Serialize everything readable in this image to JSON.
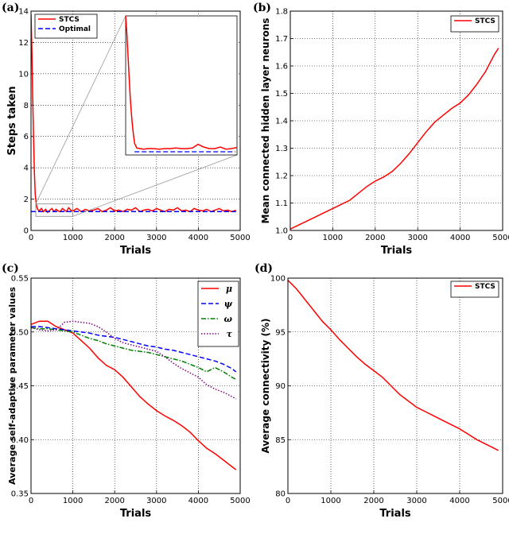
{
  "chart_data": [
    {
      "panel": "(a)",
      "type": "line",
      "xlabel": "Trials",
      "ylabel": "Steps taken",
      "xlim": [
        0,
        5000
      ],
      "ylim": [
        0,
        14
      ],
      "xticks": [
        "0",
        "1000",
        "2000",
        "3000",
        "4000",
        "5000"
      ],
      "yticks": [
        "0",
        "2",
        "4",
        "6",
        "8",
        "10",
        "12",
        "14"
      ],
      "grid": true,
      "legend": "top-left",
      "series": [
        {
          "name": "STCS",
          "color": "#ff0000",
          "style": "solid",
          "x": [
            0,
            20,
            40,
            60,
            80,
            100,
            130,
            160,
            200,
            250,
            300,
            350,
            400,
            450,
            500,
            550,
            600,
            650,
            700,
            750,
            800,
            850,
            900,
            950,
            1000,
            1100,
            1200,
            1300,
            1400,
            1500,
            1600,
            1700,
            1800,
            1900,
            2000,
            2100,
            2200,
            2300,
            2400,
            2500,
            2600,
            2700,
            2800,
            2900,
            3000,
            3100,
            3200,
            3300,
            3400,
            3500,
            3600,
            3700,
            3800,
            3900,
            4000,
            4100,
            4200,
            4300,
            4400,
            4500,
            4600,
            4700,
            4800,
            4900
          ],
          "y": [
            13.8,
            11.5,
            8.5,
            6.0,
            3.8,
            2.3,
            1.6,
            1.35,
            1.25,
            1.4,
            1.2,
            1.35,
            1.15,
            1.3,
            1.4,
            1.2,
            1.35,
            1.25,
            1.2,
            1.4,
            1.3,
            1.2,
            1.45,
            1.3,
            1.25,
            1.4,
            1.2,
            1.35,
            1.25,
            1.3,
            1.4,
            1.2,
            1.3,
            1.45,
            1.25,
            1.3,
            1.2,
            1.35,
            1.3,
            1.45,
            1.2,
            1.3,
            1.35,
            1.25,
            1.4,
            1.3,
            1.2,
            1.35,
            1.3,
            1.45,
            1.25,
            1.3,
            1.2,
            1.4,
            1.3,
            1.25,
            1.35,
            1.2,
            1.3,
            1.4,
            1.25,
            1.3,
            1.2,
            1.3
          ]
        },
        {
          "name": "Optimal",
          "color": "#0000ff",
          "style": "dashed",
          "x": [
            0,
            4900
          ],
          "y": [
            1.2,
            1.2
          ]
        }
      ],
      "inset": {
        "xlim": [
          0,
          1000
        ],
        "ylim": [
          0.9,
          14
        ],
        "x": [
          0,
          10,
          20,
          30,
          40,
          50,
          60,
          70,
          80,
          100,
          130,
          160,
          200,
          250,
          300,
          350,
          400,
          450,
          500,
          550,
          600,
          650,
          700,
          750,
          800,
          850,
          900,
          950,
          1000
        ],
        "y": [
          14,
          12.5,
          10.5,
          8.5,
          6.5,
          5.0,
          3.8,
          2.8,
          2.0,
          1.55,
          1.5,
          1.45,
          1.5,
          1.5,
          1.45,
          1.5,
          1.5,
          1.55,
          1.5,
          1.5,
          1.55,
          1.9,
          1.65,
          1.5,
          1.5,
          1.65,
          1.45,
          1.5,
          1.6
        ],
        "optimal": 1.2
      }
    },
    {
      "panel": "(b)",
      "type": "line",
      "xlabel": "Trials",
      "ylabel": "Mean connected hidden layer neurons",
      "xlim": [
        0,
        5000
      ],
      "ylim": [
        1.0,
        1.8
      ],
      "xticks": [
        "0",
        "1000",
        "2000",
        "3000",
        "4000",
        "5000"
      ],
      "yticks": [
        "1.0",
        "1.1",
        "1.2",
        "1.3",
        "1.4",
        "1.5",
        "1.6",
        "1.7",
        "1.8"
      ],
      "grid": true,
      "legend": "top-right",
      "series": [
        {
          "name": "STCS",
          "color": "#ff0000",
          "style": "solid",
          "x": [
            0,
            200,
            400,
            600,
            800,
            1000,
            1200,
            1400,
            1600,
            1800,
            2000,
            2200,
            2400,
            2600,
            2800,
            3000,
            3200,
            3400,
            3600,
            3800,
            4000,
            4200,
            4400,
            4600,
            4800,
            4900
          ],
          "y": [
            1.005,
            1.02,
            1.035,
            1.05,
            1.065,
            1.08,
            1.095,
            1.11,
            1.135,
            1.16,
            1.18,
            1.195,
            1.215,
            1.245,
            1.28,
            1.32,
            1.36,
            1.395,
            1.42,
            1.445,
            1.465,
            1.495,
            1.535,
            1.58,
            1.64,
            1.665
          ]
        }
      ]
    },
    {
      "panel": "(c)",
      "type": "line",
      "xlabel": "Trials",
      "ylabel": "Average self-adaptive parameter values",
      "xlim": [
        0,
        5000
      ],
      "ylim": [
        0.35,
        0.55
      ],
      "xticks": [
        "0",
        "1000",
        "2000",
        "3000",
        "4000",
        "5000"
      ],
      "yticks": [
        "0.35",
        "0.40",
        "0.45",
        "0.50",
        "0.55"
      ],
      "grid": true,
      "legend": "top-right",
      "series": [
        {
          "name": "μ",
          "color": "#ff0000",
          "style": "solid",
          "x": [
            0,
            200,
            400,
            600,
            800,
            1000,
            1200,
            1400,
            1600,
            1800,
            2000,
            2200,
            2400,
            2600,
            2800,
            3000,
            3200,
            3400,
            3600,
            3800,
            4000,
            4200,
            4400,
            4600,
            4800,
            4900
          ],
          "y": [
            0.507,
            0.51,
            0.51,
            0.505,
            0.502,
            0.499,
            0.492,
            0.485,
            0.476,
            0.469,
            0.465,
            0.458,
            0.449,
            0.44,
            0.433,
            0.427,
            0.422,
            0.418,
            0.413,
            0.407,
            0.399,
            0.392,
            0.387,
            0.381,
            0.375,
            0.372
          ]
        },
        {
          "name": "ψ",
          "color": "#0000ff",
          "style": "dashed",
          "x": [
            0,
            200,
            400,
            600,
            800,
            1000,
            1200,
            1400,
            1600,
            1800,
            2000,
            2200,
            2400,
            2600,
            2800,
            3000,
            3200,
            3400,
            3600,
            3800,
            4000,
            4200,
            4400,
            4600,
            4800,
            4900
          ],
          "y": [
            0.505,
            0.505,
            0.504,
            0.503,
            0.502,
            0.501,
            0.5,
            0.499,
            0.497,
            0.496,
            0.495,
            0.493,
            0.491,
            0.489,
            0.487,
            0.486,
            0.484,
            0.483,
            0.481,
            0.479,
            0.477,
            0.475,
            0.473,
            0.47,
            0.466,
            0.463
          ]
        },
        {
          "name": "ω",
          "color": "#008000",
          "style": "dashdot",
          "x": [
            0,
            200,
            400,
            600,
            800,
            1000,
            1200,
            1400,
            1600,
            1800,
            2000,
            2200,
            2400,
            2600,
            2800,
            3000,
            3200,
            3400,
            3600,
            3800,
            4000,
            4200,
            4400,
            4600,
            4800,
            4900
          ],
          "y": [
            0.504,
            0.503,
            0.503,
            0.502,
            0.501,
            0.5,
            0.497,
            0.494,
            0.492,
            0.489,
            0.487,
            0.485,
            0.483,
            0.482,
            0.481,
            0.479,
            0.477,
            0.475,
            0.473,
            0.47,
            0.467,
            0.463,
            0.467,
            0.463,
            0.458,
            0.456
          ]
        },
        {
          "name": "τ",
          "color": "#800080",
          "style": "dotted",
          "x": [
            0,
            200,
            400,
            600,
            800,
            1000,
            1200,
            1400,
            1600,
            1800,
            2000,
            2200,
            2400,
            2600,
            2800,
            3000,
            3200,
            3400,
            3600,
            3800,
            4000,
            4200,
            4400,
            4600,
            4800,
            4900
          ],
          "y": [
            0.504,
            0.502,
            0.501,
            0.502,
            0.509,
            0.51,
            0.509,
            0.508,
            0.505,
            0.5,
            0.494,
            0.49,
            0.488,
            0.486,
            0.484,
            0.482,
            0.477,
            0.471,
            0.466,
            0.462,
            0.458,
            0.451,
            0.447,
            0.444,
            0.44,
            0.438
          ]
        }
      ]
    },
    {
      "panel": "(d)",
      "type": "line",
      "xlabel": "Trials",
      "ylabel": "Average connectivity (%)",
      "xlim": [
        0,
        5000
      ],
      "ylim": [
        80,
        100
      ],
      "xticks": [
        "0",
        "1000",
        "2000",
        "3000",
        "4000",
        "5000"
      ],
      "yticks": [
        "80",
        "85",
        "90",
        "95",
        "100"
      ],
      "grid": true,
      "legend": "top-right",
      "series": [
        {
          "name": "STCS",
          "color": "#ff0000",
          "style": "solid",
          "x": [
            0,
            200,
            400,
            600,
            800,
            1000,
            1200,
            1400,
            1600,
            1800,
            2000,
            2200,
            2400,
            2600,
            2800,
            3000,
            3200,
            3400,
            3600,
            3800,
            4000,
            4200,
            4400,
            4600,
            4800,
            4900
          ],
          "y": [
            99.8,
            99.0,
            98.0,
            97.0,
            96.0,
            95.2,
            94.3,
            93.5,
            92.7,
            92.0,
            91.4,
            90.8,
            90.0,
            89.2,
            88.6,
            88.0,
            87.6,
            87.2,
            86.8,
            86.4,
            86.0,
            85.5,
            85.0,
            84.6,
            84.2,
            84.0
          ]
        }
      ]
    }
  ]
}
